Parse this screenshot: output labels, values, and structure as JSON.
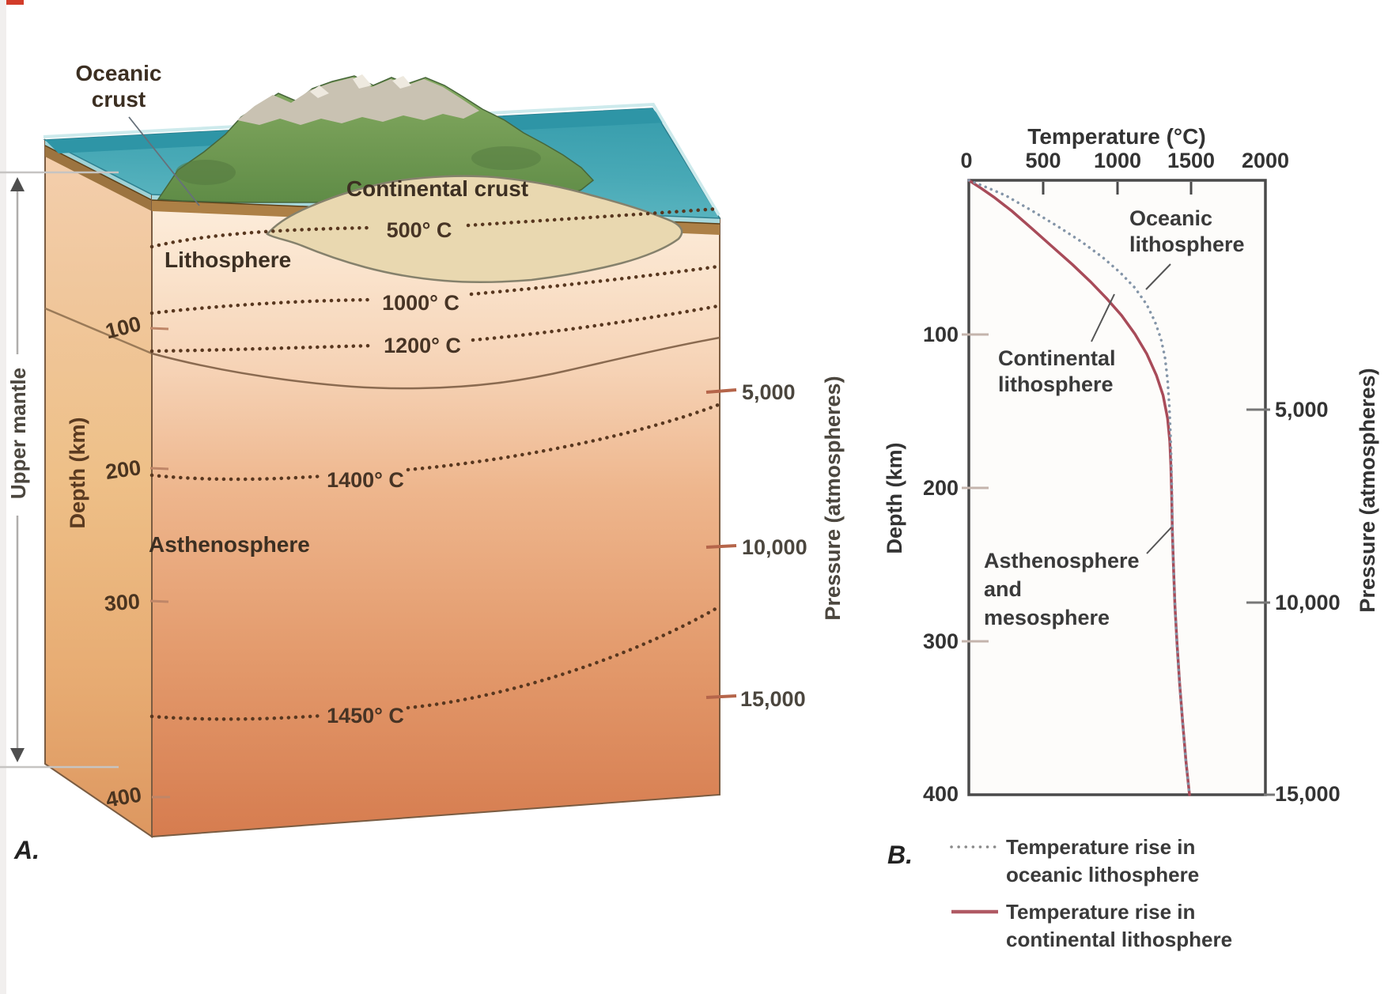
{
  "colors": {
    "ocean_teal": "#4aacb8",
    "ocean_dark_band": "#2e95a6",
    "crust_brown": "#ad8046",
    "isotherm_dot_brown": "#58371f",
    "continental_curve_red": "#a84b59",
    "oceanic_curve_gray_blue": "#8495a8",
    "continental_crust_tan": "#e9d8b0",
    "island_green": "#6f9c55"
  },
  "panel_a": {
    "label": "A.",
    "annotations": {
      "oceanic_crust_line1": "Oceanic",
      "oceanic_crust_line2": "crust",
      "continental_crust": "Continental crust",
      "lithosphere": "Lithosphere",
      "asthenosphere": "Asthenosphere",
      "upper_mantle": "Upper mantle"
    },
    "axes": {
      "depth_label": "Depth (km)",
      "pressure_label": "Pressure (atmospheres)",
      "depth_ticks": [
        "100",
        "200",
        "300",
        "400"
      ],
      "pressure_ticks": [
        "5,000",
        "10,000",
        "15,000"
      ]
    },
    "isotherms": [
      "500° C",
      "1000° C",
      "1200° C",
      "1400° C",
      "1450° C"
    ]
  },
  "panel_b": {
    "label": "B.",
    "title": "Temperature (°C)",
    "x_ticks": [
      "0",
      "500",
      "1000",
      "1500",
      "2000"
    ],
    "depth_label": "Depth (km)",
    "depth_ticks": [
      "100",
      "200",
      "300",
      "400"
    ],
    "pressure_label": "Pressure (atmospheres)",
    "pressure_ticks": [
      "5,000",
      "10,000",
      "15,000"
    ],
    "annotations": {
      "oceanic_line1": "Oceanic",
      "oceanic_line2": "lithosphere",
      "continental_line1": "Continental",
      "continental_line2": "lithosphere",
      "asthenosphere_line1": "Asthenosphere",
      "asthenosphere_line2": "and",
      "asthenosphere_line3": "mesosphere"
    },
    "legend": {
      "item1_line1": "Temperature rise in",
      "item1_line2": "oceanic lithosphere",
      "item2_line1": "Temperature rise in",
      "item2_line2": "continental lithosphere"
    }
  },
  "chart_data": {
    "type": "line",
    "title": "Temperature (°C)",
    "xlabel": "Temperature (°C)",
    "ylabel_left": "Depth (km)",
    "ylabel_right": "Pressure (atmospheres)",
    "xlim": [
      0,
      2000
    ],
    "x_ticks": [
      0,
      500,
      1000,
      1500,
      2000
    ],
    "depth_lim_km": [
      0,
      400
    ],
    "depth_ticks_km": [
      100,
      200,
      300,
      400
    ],
    "pressure_ticks_atm": [
      5000,
      10000,
      15000
    ],
    "pressure_tick_depths_km": [
      149,
      275,
      400
    ],
    "grid": false,
    "legend_position": "below",
    "series": [
      {
        "id": "continental",
        "name": "Temperature rise in continental lithosphere",
        "style": "solid",
        "color": "#a84b59",
        "points_temp_depth": [
          [
            0,
            0
          ],
          [
            80,
            5
          ],
          [
            170,
            11
          ],
          [
            290,
            20
          ],
          [
            420,
            31
          ],
          [
            560,
            43
          ],
          [
            700,
            55
          ],
          [
            820,
            66
          ],
          [
            930,
            77
          ],
          [
            1030,
            88
          ],
          [
            1120,
            100
          ],
          [
            1200,
            113
          ],
          [
            1265,
            127
          ],
          [
            1310,
            140
          ],
          [
            1340,
            155
          ],
          [
            1355,
            170
          ],
          [
            1362,
            185
          ],
          [
            1368,
            205
          ],
          [
            1372,
            228
          ],
          [
            1380,
            252
          ],
          [
            1390,
            277
          ],
          [
            1404,
            302
          ],
          [
            1422,
            328
          ],
          [
            1442,
            353
          ],
          [
            1464,
            378
          ],
          [
            1488,
            400
          ]
        ]
      },
      {
        "id": "oceanic",
        "name": "Temperature rise in oceanic lithosphere",
        "style": "dotted",
        "color": "#8495a8",
        "points_temp_depth": [
          [
            0,
            0
          ],
          [
            130,
            5
          ],
          [
            250,
            10
          ],
          [
            430,
            20
          ],
          [
            600,
            30
          ],
          [
            760,
            40
          ],
          [
            900,
            50
          ],
          [
            1020,
            60
          ],
          [
            1120,
            70
          ],
          [
            1200,
            81
          ],
          [
            1255,
            92
          ],
          [
            1295,
            103
          ],
          [
            1322,
            115
          ],
          [
            1340,
            130
          ],
          [
            1352,
            147
          ],
          [
            1360,
            166
          ],
          [
            1366,
            186
          ],
          [
            1370,
            207
          ],
          [
            1374,
            230
          ],
          [
            1381,
            254
          ],
          [
            1391,
            279
          ],
          [
            1405,
            304
          ],
          [
            1423,
            330
          ],
          [
            1443,
            355
          ],
          [
            1465,
            380
          ],
          [
            1488,
            400
          ]
        ]
      }
    ],
    "isotherm_labels_panel_a_c": [
      500,
      1000,
      1200,
      1400,
      1450
    ]
  }
}
